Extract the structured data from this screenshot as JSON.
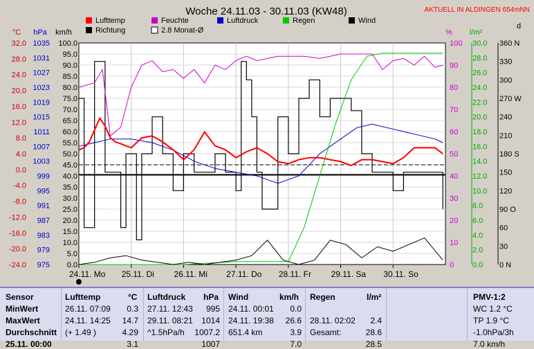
{
  "chart_data": {
    "type": "line",
    "title": "Woche 24.11.03 - 30.11.03 (KW48)",
    "subtitle": "AKTUELL IN ALDINGEN 654mNN",
    "x_day_labels": [
      "24.11. Mo",
      "25.11. Di",
      "26.11. Mi",
      "27.11. Do",
      "28.11. Fr",
      "29.11. Sa",
      "30.11. So"
    ],
    "legend": [
      {
        "name": "Lufttemp",
        "color": "#ff0000"
      },
      {
        "name": "Feuchte",
        "color": "#cc00cc"
      },
      {
        "name": "Luftdruck",
        "color": "#0000cc"
      },
      {
        "name": "Regen",
        "color": "#00cc00"
      },
      {
        "name": "Wind",
        "color": "#000000"
      },
      {
        "name": "Richtung",
        "color": "#000000"
      },
      {
        "name": "2.8 Monat-Ø",
        "color": "#000000"
      }
    ],
    "axes": {
      "temp": {
        "unit": "°C",
        "ticks": [
          "32.0",
          "28.0",
          "24.0",
          "20.0",
          "16.0",
          "12.0",
          "8.0",
          "4.0",
          "0.0",
          "-4.0",
          "-8.0",
          "-12.0",
          "-16.0",
          "-20.0",
          "-24.0"
        ],
        "range": [
          -24,
          32
        ],
        "color": "#cc0000"
      },
      "pressure": {
        "unit": "hPa",
        "ticks": [
          "1035",
          "1031",
          "1027",
          "1023",
          "1019",
          "1015",
          "1011",
          "1007",
          "1003",
          "999",
          "995",
          "991",
          "987",
          "983",
          "979",
          "975"
        ],
        "range": [
          975,
          1035
        ],
        "color": "#0000cc"
      },
      "wind": {
        "unit": "km/h",
        "ticks": [
          "100.0",
          "95.0",
          "90.0",
          "85.0",
          "80.0",
          "75.0",
          "70.0",
          "65.0",
          "60.0",
          "55.0",
          "50.0",
          "45.0",
          "40.0",
          "35.0",
          "30.0",
          "25.0",
          "20.0",
          "15.0",
          "10.0",
          "5.0",
          "0.0"
        ],
        "range": [
          0,
          100
        ]
      },
      "humidity": {
        "unit": "%",
        "ticks": [
          "100",
          "90",
          "80",
          "70",
          "60",
          "50",
          "40",
          "30",
          "20",
          "10",
          "0"
        ],
        "range": [
          0,
          100
        ],
        "color": "#cc00cc"
      },
      "rain": {
        "unit": "l/m²",
        "ticks": [
          "30.0",
          "28.0",
          "26.0",
          "24.0",
          "22.0",
          "20.0",
          "18.0",
          "16.0",
          "14.0",
          "12.0",
          "10.0",
          "8.0",
          "6.0",
          "4.0",
          "2.0",
          "0.0"
        ],
        "range": [
          0,
          30
        ],
        "color": "#00aa00"
      },
      "direction": {
        "unit": "d",
        "ticks": [
          "360 N",
          "330",
          "300",
          "270 W",
          "240",
          "210",
          "180 S",
          "150",
          "120",
          "90 O",
          "60",
          "30",
          "0 N"
        ],
        "range": [
          0,
          360
        ]
      }
    },
    "reference_lines": {
      "wind_mean_kmh": 40.5,
      "dashed_humidity_pct": 45
    },
    "series": [
      {
        "name": "Lufttemp",
        "unit": "°C",
        "x": [
          0,
          0.1,
          0.2,
          0.3,
          0.4,
          0.5,
          0.6,
          0.7,
          0.8,
          0.9,
          1.0,
          1.2,
          1.4,
          1.6,
          1.8,
          2.0,
          2.2,
          2.4,
          2.6,
          2.8,
          3.0,
          3.2,
          3.4,
          3.6,
          3.8,
          4.0,
          4.2,
          4.4,
          4.6,
          4.8,
          5.0,
          5.2,
          5.4,
          5.6,
          5.8,
          6.0,
          6.2,
          6.4,
          6.6,
          6.8,
          6.95
        ],
        "values": [
          5.0,
          5.5,
          7.0,
          10.0,
          13.0,
          11.0,
          8.0,
          7.0,
          6.5,
          6.0,
          5.5,
          8.0,
          8.5,
          7.0,
          5.0,
          2.5,
          5.0,
          9.5,
          6.0,
          5.0,
          3.0,
          4.5,
          5.5,
          4.0,
          2.0,
          1.5,
          2.5,
          3.0,
          3.0,
          2.5,
          2.0,
          1.0,
          2.5,
          2.5,
          2.0,
          1.5,
          3.0,
          5.5,
          5.5,
          5.5,
          4.0
        ]
      },
      {
        "name": "Feuchte",
        "unit": "%",
        "x": [
          0,
          0.3,
          0.45,
          0.6,
          0.8,
          1.0,
          1.2,
          1.4,
          1.6,
          1.8,
          2.0,
          2.2,
          2.4,
          2.6,
          2.8,
          3.0,
          3.2,
          3.4,
          3.6,
          3.8,
          4.0,
          4.3,
          4.6,
          4.8,
          5.0,
          5.3,
          5.6,
          5.8,
          6.0,
          6.2,
          6.4,
          6.6,
          6.8,
          6.95
        ],
        "values": [
          80,
          82,
          88,
          58,
          62,
          80,
          90,
          92,
          87,
          88,
          84,
          88,
          82,
          90,
          88,
          92,
          94,
          92,
          93,
          94,
          94,
          94,
          93,
          94,
          95,
          95,
          95,
          88,
          92,
          93,
          90,
          94,
          89,
          90
        ]
      },
      {
        "name": "Luftdruck",
        "unit": "hPa",
        "x": [
          0,
          0.3,
          0.6,
          1.0,
          1.4,
          1.8,
          2.2,
          2.6,
          3.0,
          3.4,
          3.8,
          4.2,
          4.6,
          5.0,
          5.3,
          5.6,
          5.9,
          6.2,
          6.5,
          6.8,
          6.95
        ],
        "values": [
          1007,
          1008,
          1009,
          1009,
          1008,
          1006,
          1003,
          1001,
          1000,
          999,
          997,
          999,
          1005,
          1009,
          1012,
          1013,
          1012,
          1011,
          1010,
          1009,
          1008
        ]
      },
      {
        "name": "Regen",
        "unit": "l/m²",
        "x": [
          0,
          1.0,
          2.0,
          3.0,
          4.0,
          4.3,
          4.6,
          4.9,
          5.2,
          5.5,
          5.8,
          6.0,
          6.5,
          6.95
        ],
        "values": [
          0,
          0,
          0,
          0.4,
          0.4,
          5,
          12,
          19,
          25,
          28.2,
          28.6,
          28.6,
          28.6,
          28.6
        ]
      },
      {
        "name": "Wind",
        "unit": "km/h",
        "x": [
          0,
          0.3,
          0.6,
          0.9,
          1.2,
          1.5,
          1.8,
          2.1,
          2.4,
          2.7,
          3.0,
          3.3,
          3.6,
          3.9,
          4.2,
          4.5,
          4.8,
          5.1,
          5.4,
          5.7,
          6.0,
          6.3,
          6.6,
          6.95
        ],
        "values": [
          0,
          1,
          3,
          4,
          2,
          1,
          0,
          1,
          0,
          1,
          2,
          4,
          11,
          2,
          0,
          2,
          11,
          9,
          3,
          8,
          6,
          9,
          12,
          2
        ]
      },
      {
        "name": "Richtung",
        "unit": "d",
        "x": [
          0,
          0.1,
          0.2,
          0.3,
          0.4,
          0.5,
          0.6,
          0.7,
          0.8,
          0.9,
          1.0,
          1.1,
          1.2,
          1.4,
          1.6,
          1.8,
          2.0,
          2.2,
          2.4,
          2.6,
          2.8,
          3.0,
          3.1,
          3.2,
          3.3,
          3.4,
          3.5,
          3.6,
          3.8,
          4.0,
          4.2,
          4.4,
          4.6,
          4.8,
          5.0,
          5.2,
          5.4,
          5.6,
          5.8,
          6.0,
          6.2,
          6.4,
          6.6,
          6.8,
          6.95
        ],
        "values": [
          270,
          60,
          60,
          330,
          330,
          150,
          150,
          150,
          60,
          180,
          180,
          40,
          180,
          240,
          180,
          120,
          180,
          150,
          150,
          180,
          150,
          120,
          330,
          300,
          240,
          150,
          90,
          90,
          240,
          180,
          270,
          300,
          240,
          270,
          270,
          250,
          180,
          150,
          150,
          120,
          150,
          150,
          150,
          150,
          90
        ]
      }
    ]
  },
  "stats": {
    "headers": [
      "Sensor",
      "Lufttemp",
      "°C",
      "Luftdruck",
      "hPa",
      "Wind",
      "km/h",
      "Regen",
      "l/m²",
      "PMV-1:2"
    ],
    "row_labels": [
      "MinWert",
      "MaxWert",
      "Durchschnitt",
      "25.11. 00:00"
    ],
    "lufttemp": [
      [
        "26.11.  07:09",
        "0.3"
      ],
      [
        "24.11.  14:25",
        "14.7"
      ],
      [
        "(+ 1.49 )",
        "4.29"
      ],
      [
        "",
        "3.1"
      ]
    ],
    "luftdruck": [
      [
        "27.11.  12:43",
        "995"
      ],
      [
        "29.11.  08:21",
        "1014"
      ],
      [
        "^1.5hPa/h",
        "1007.2"
      ],
      [
        "",
        "1007"
      ]
    ],
    "wind": [
      [
        "24.11.  00:01",
        "0.0"
      ],
      [
        "24.11.  19:38",
        "26.6"
      ],
      [
        "651.4 km",
        "3.9"
      ],
      [
        "",
        "7.0"
      ]
    ],
    "regen": [
      [
        "",
        ""
      ],
      [
        "28.11.  02:02",
        "2.4"
      ],
      [
        "Gesamt:",
        "28.6"
      ],
      [
        "",
        "28.5"
      ]
    ],
    "pmv": [
      "WC 1.2 °C",
      "TP 1.9 °C",
      "-1.0hPa/3h",
      "7.0 km/h"
    ]
  }
}
